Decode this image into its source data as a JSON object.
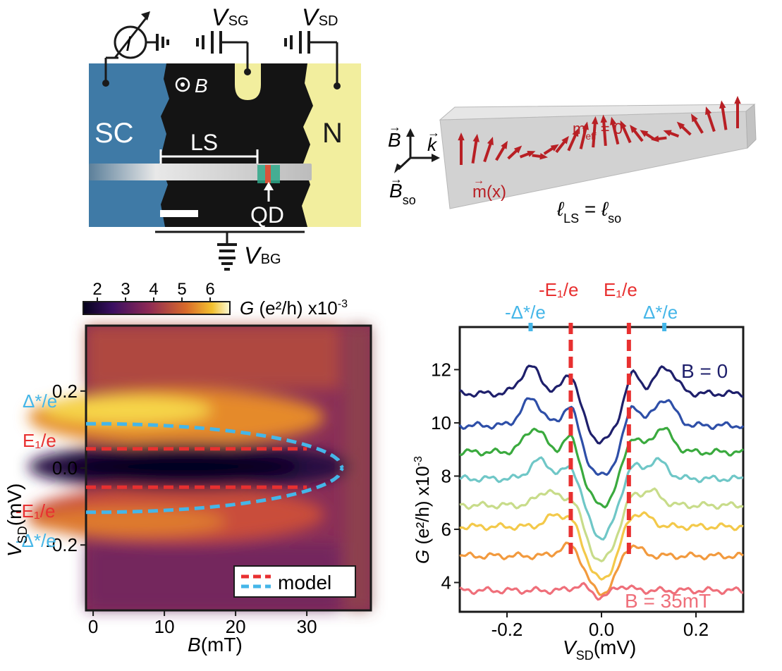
{
  "device": {
    "labels": {
      "sc": "SC",
      "n": "N",
      "ls": "LS",
      "qd": "QD",
      "b": "B"
    },
    "circuit": {
      "current": "I",
      "vsg_main": "V",
      "vsg_sub": "SG",
      "vsd_main": "V",
      "vsd_sub": "SD",
      "vbg_main": "V",
      "vbg_sub": "BG"
    }
  },
  "schematic": {
    "b_vec": "B",
    "k_vec": "k",
    "bso_main": "B",
    "bso_sub": "so",
    "meff_main": "m",
    "meff_sub": "eff",
    "meff_tail": " = 0",
    "mx_label": "m(x)",
    "lls_main": "ℓ",
    "lls_sub": "LS",
    "lls_eq": " = ",
    "lso_main": "ℓ",
    "lso_sub": "so"
  },
  "colorbar": {
    "ticks": [
      "2",
      "3",
      "4",
      "5",
      "6"
    ],
    "label_main": "G",
    "label_unit": " (e²/h) x10",
    "label_exp": "-3"
  },
  "colormap_chart": {
    "ytick_labels": [
      "0.2",
      "0.0",
      "-0.2"
    ],
    "xtick_labels": [
      "0",
      "10",
      "20",
      "30"
    ],
    "annotations": {
      "delta_pos": "Δ*/e",
      "e1_pos": "E₁/e",
      "e1_neg": "-E₁/e",
      "delta_neg": "-Δ*/e"
    },
    "ylabel_main": "V",
    "ylabel_sub": "SD",
    "ylabel_unit": "(mV)",
    "xlabel_main": "B",
    "xlabel_unit": "(mT)",
    "legend_label": "model"
  },
  "linecut_chart": {
    "ytick_labels": [
      "4",
      "6",
      "8",
      "10",
      "12"
    ],
    "xtick_labels": [
      "-0.2",
      "0.0",
      "0.2"
    ],
    "top_labels": {
      "delta_neg": "-Δ*/e",
      "e1_neg": "-E₁/e",
      "e1_pos": "E₁/e",
      "delta_pos": "Δ*/e"
    },
    "ylabel_main": "G",
    "ylabel_unit": " (e²/h) x10",
    "ylabel_exp": "-3",
    "xlabel_main": "V",
    "xlabel_sub": "SD",
    "xlabel_unit": "(mV)",
    "label_b0": "B = 0",
    "label_b35": "B = 35mT"
  },
  "chart_data": [
    {
      "type": "heatmap",
      "xlabel": "B(mT)",
      "ylabel": "V_SD(mV)",
      "xlim": [
        -1,
        39
      ],
      "ylim": [
        -0.37,
        0.37
      ],
      "colorbar_label": "G (e²/h) x10⁻³",
      "colorbar_range": [
        1.5,
        6.5
      ],
      "model_curves": {
        "delta_star_mV": 0.115,
        "E1_mV": 0.05,
        "closing_field_mT": 35,
        "E1_field_range_mT": [
          -1,
          30
        ]
      },
      "legend": "model"
    },
    {
      "type": "line",
      "xlabel": "V_SD(mV)",
      "ylabel": "G (e²/h) x10⁻³",
      "xlim": [
        -0.3,
        0.3
      ],
      "ylim": [
        2.9,
        13.6
      ],
      "marker_lines_mV": {
        "-Δ*/e": -0.15,
        "-E₁/e": -0.065,
        "E₁/e": 0.058,
        "Δ*/e": 0.133
      },
      "series": [
        {
          "name": "B = 0",
          "color": "#1e1f6b",
          "offset": 11.1,
          "params": {
            "dp": 0.15,
            "e1": 0.065,
            "ampDelta": 1.0,
            "ampE": 0.8,
            "depth": 1.8,
            "dipw": 0.05
          }
        },
        {
          "color": "#2e4fa8",
          "offset": 9.9,
          "params": {
            "dp": 0.148,
            "e1": 0.065,
            "ampDelta": 1.0,
            "ampE": 0.8,
            "depth": 1.9,
            "dipw": 0.05
          }
        },
        {
          "color": "#3aaa3e",
          "offset": 8.9,
          "params": {
            "dp": 0.142,
            "e1": 0.063,
            "ampDelta": 0.9,
            "ampE": 0.7,
            "depth": 2.0,
            "dipw": 0.05
          }
        },
        {
          "color": "#6fc7c7",
          "offset": 7.9,
          "params": {
            "dp": 0.13,
            "e1": 0.062,
            "ampDelta": 0.7,
            "ampE": 0.55,
            "depth": 2.2,
            "dipw": 0.045
          }
        },
        {
          "color": "#c8dc8a",
          "offset": 6.9,
          "params": {
            "dp": 0.115,
            "e1": 0.06,
            "ampDelta": 0.55,
            "ampE": 0.4,
            "depth": 2.1,
            "dipw": 0.045
          }
        },
        {
          "color": "#f3c94a",
          "offset": 6.1,
          "params": {
            "dp": 0.095,
            "e1": 0.058,
            "ampDelta": 0.45,
            "ampE": 0.3,
            "depth": 2.0,
            "dipw": 0.045
          }
        },
        {
          "color": "#f29a3e",
          "offset": 5.0,
          "params": {
            "dp": 0.07,
            "e1": 0.055,
            "ampDelta": 0.35,
            "ampE": 0.2,
            "depth": 1.4,
            "dipw": 0.045
          }
        },
        {
          "name": "B = 35mT",
          "color": "#ef6f7a",
          "offset": 3.7,
          "params": {
            "dp": 0.04,
            "e1": 0.04,
            "ampDelta": 0.15,
            "ampE": 0.1,
            "depth": 0.3,
            "dipw": 0.04
          }
        }
      ]
    }
  ],
  "colors": {
    "blue_model": "#45b6e8",
    "red_model": "#e83030",
    "vector_red": "#b81f24",
    "sc_blue": "#3f7aa6",
    "n_yellow": "#f2ee9e"
  }
}
